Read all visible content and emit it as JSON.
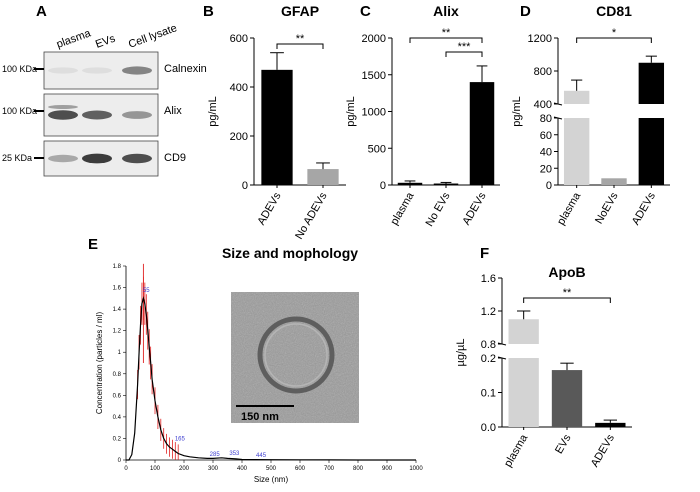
{
  "panels": {
    "A": {
      "letter": "A",
      "lanes": [
        "plasma",
        "EVs",
        "Cell lysate"
      ],
      "blots": [
        {
          "marker": "100 KDa",
          "protein": "Calnexin",
          "intensity": [
            0.05,
            0.05,
            0.55
          ]
        },
        {
          "marker": "100 KDa",
          "protein": "Alix",
          "intensity": [
            0.85,
            0.75,
            0.45
          ]
        },
        {
          "marker": "25 KDa",
          "protein": "CD9",
          "intensity": [
            0.35,
            0.95,
            0.85
          ]
        }
      ]
    },
    "E": {
      "letter": "E",
      "title": "Size and mophology",
      "scale_bar": "150 nm"
    }
  },
  "chart_data": [
    {
      "panel": "B",
      "type": "bar",
      "title": "GFAP",
      "ylabel": "pg/mL",
      "categories": [
        "ADEVs",
        "No ADEVs"
      ],
      "values": [
        470,
        65
      ],
      "errors": [
        70,
        25
      ],
      "colors": [
        "#000000",
        "#a6a6a6"
      ],
      "ylim": [
        0,
        600
      ],
      "yticks": [
        "0",
        "200",
        "400",
        "600"
      ],
      "ytick_values": [
        0,
        200,
        400,
        600
      ],
      "significance": [
        {
          "from": 0,
          "to": 1,
          "label": "**"
        }
      ]
    },
    {
      "panel": "C",
      "type": "bar",
      "title": "Alix",
      "ylabel": "pg/mL",
      "categories": [
        "plasma",
        "No EVs",
        "ADEVs"
      ],
      "values": [
        30,
        20,
        1400
      ],
      "errors": [
        25,
        15,
        220
      ],
      "colors": [
        "#000000",
        "#000000",
        "#000000"
      ],
      "ylim": [
        0,
        2000
      ],
      "yticks": [
        "0",
        "500",
        "1000",
        "1500",
        "2000"
      ],
      "ytick_values": [
        0,
        500,
        1000,
        1500,
        2000
      ],
      "significance": [
        {
          "from": 0,
          "to": 2,
          "label": "**"
        },
        {
          "from": 1,
          "to": 2,
          "label": "***"
        }
      ]
    },
    {
      "panel": "D",
      "type": "bar",
      "title": "CD81",
      "ylabel": "pg/mL",
      "categories": [
        "plasma",
        "NoEVs",
        "ADEVs"
      ],
      "values": [
        560,
        8,
        900
      ],
      "errors": [
        130,
        0,
        80
      ],
      "colors": [
        "#d3d3d3",
        "#a6a6a6",
        "#000000"
      ],
      "broken_axis": {
        "lower": [
          0,
          80
        ],
        "upper": [
          400,
          1200
        ]
      },
      "yticks": [
        "0",
        "20",
        "40",
        "60",
        "80",
        "400",
        "800",
        "1200"
      ],
      "ytick_values": [
        0,
        20,
        40,
        60,
        80,
        400,
        800,
        1200
      ],
      "significance": [
        {
          "from": 0,
          "to": 2,
          "label": "*"
        }
      ]
    },
    {
      "panel": "E",
      "type": "line",
      "xlabel": "Size (nm)",
      "ylabel": "Concentration (particles / ml)",
      "xlim": [
        0,
        1000
      ],
      "ylim": [
        0,
        1.8
      ],
      "xticks": [
        "0",
        "100",
        "200",
        "300",
        "400",
        "500",
        "600",
        "700",
        "800",
        "900",
        "1000"
      ],
      "xtick_values": [
        0,
        100,
        200,
        300,
        400,
        500,
        600,
        700,
        800,
        900,
        1000
      ],
      "yticks": [
        "0",
        "0.2",
        "0.4",
        "0.6",
        "0.8",
        "1",
        "1.2",
        "1.4",
        "1.6",
        "1.8"
      ],
      "ytick_values": [
        0,
        0.2,
        0.4,
        0.6,
        0.8,
        1.0,
        1.2,
        1.4,
        1.6,
        1.8
      ],
      "x": [
        0,
        10,
        20,
        30,
        40,
        45,
        50,
        55,
        60,
        65,
        70,
        75,
        80,
        85,
        90,
        100,
        110,
        120,
        130,
        140,
        150,
        160,
        170,
        180,
        200,
        220,
        250,
        280,
        300,
        330,
        350,
        380,
        400,
        445,
        500,
        600,
        700,
        800,
        900,
        1000
      ],
      "y": [
        0,
        0,
        0.05,
        0.25,
        0.7,
        1.0,
        1.25,
        1.45,
        1.5,
        1.45,
        1.35,
        1.2,
        1.05,
        0.9,
        0.75,
        0.55,
        0.4,
        0.28,
        0.2,
        0.15,
        0.12,
        0.1,
        0.08,
        0.06,
        0.04,
        0.03,
        0.02,
        0.015,
        0.015,
        0.02,
        0.015,
        0.01,
        0.005,
        0.004,
        0.003,
        0.002,
        0.001,
        0,
        0,
        0
      ],
      "peak_labels": [
        {
          "x": 55,
          "y": 1.55,
          "label": "55"
        },
        {
          "x": 165,
          "y": 0.17,
          "label": "165"
        },
        {
          "x": 285,
          "y": 0.03,
          "label": "285"
        },
        {
          "x": 353,
          "y": 0.035,
          "label": "353"
        },
        {
          "x": 445,
          "y": 0.02,
          "label": "445"
        }
      ],
      "line_color": "#000000",
      "error_color": "#e02020",
      "label_color": "#4040d0"
    },
    {
      "panel": "F",
      "type": "bar",
      "title": "ApoB",
      "ylabel": "µg/µL",
      "categories": [
        "plasma",
        "EVs",
        "ADEVs"
      ],
      "values": [
        1.1,
        0.165,
        0.012
      ],
      "errors": [
        0.1,
        0.02,
        0.008
      ],
      "colors": [
        "#d3d3d3",
        "#595959",
        "#000000"
      ],
      "broken_axis": {
        "lower": [
          0,
          0.2
        ],
        "upper": [
          0.8,
          1.6
        ]
      },
      "yticks": [
        "0.0",
        "0.1",
        "0.2",
        "0.8",
        "1.2",
        "1.6"
      ],
      "ytick_values": [
        0,
        0.1,
        0.2,
        0.8,
        1.2,
        1.6
      ],
      "significance": [
        {
          "from": 0,
          "to": 2,
          "label": "**"
        }
      ]
    }
  ]
}
